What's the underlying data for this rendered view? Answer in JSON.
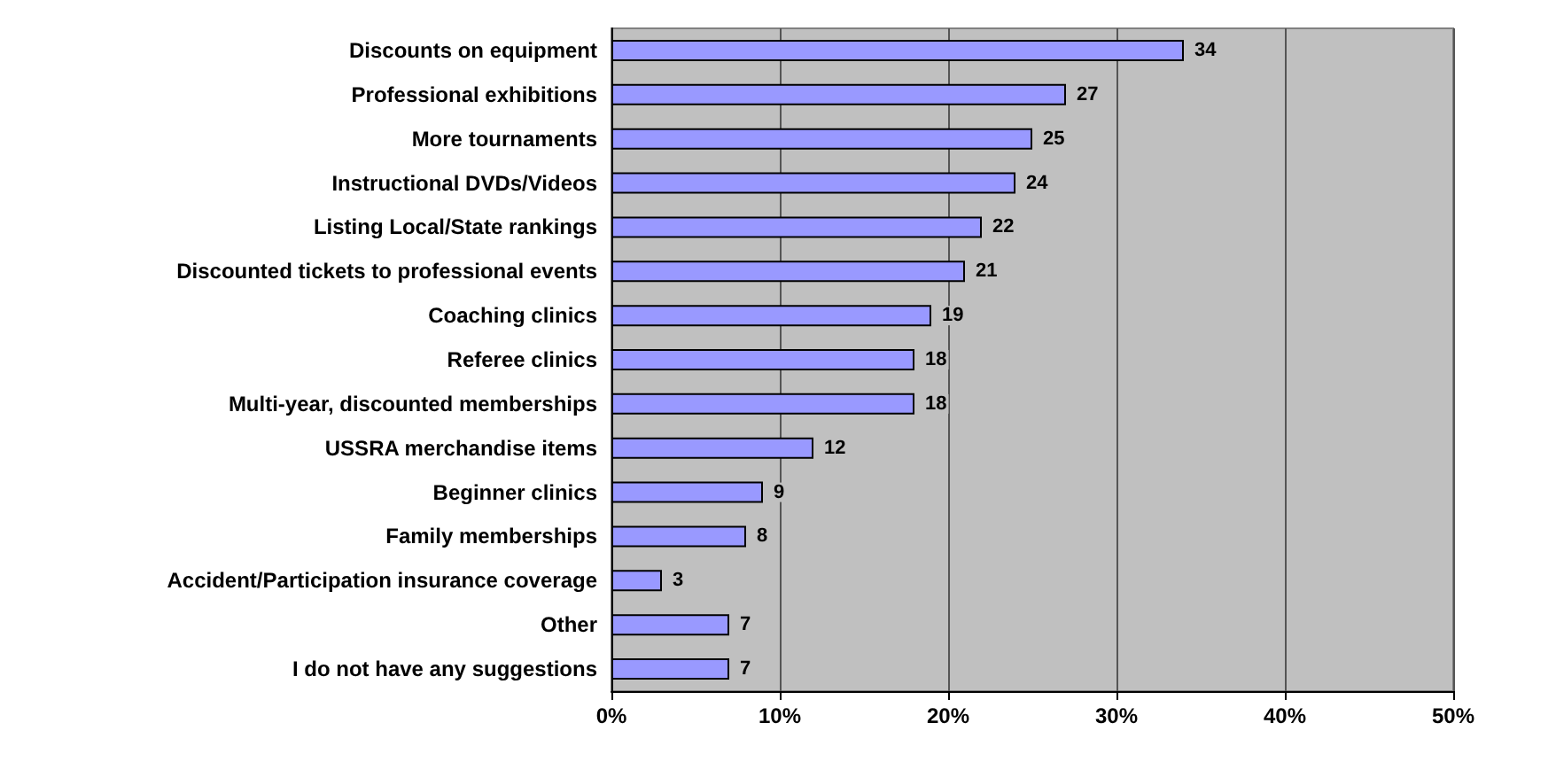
{
  "chart_data": {
    "type": "bar",
    "orientation": "horizontal",
    "categories": [
      "Discounts on equipment",
      "Professional exhibitions",
      "More tournaments",
      "Instructional DVDs/Videos",
      "Listing Local/State rankings",
      "Discounted tickets to professional events",
      "Coaching clinics",
      "Referee clinics",
      "Multi-year, discounted memberships",
      "USSRA merchandise items",
      "Beginner clinics",
      "Family memberships",
      "Accident/Participation insurance coverage",
      "Other",
      "I do not have any suggestions"
    ],
    "values": [
      34,
      27,
      25,
      24,
      22,
      21,
      19,
      18,
      18,
      12,
      9,
      8,
      3,
      7,
      7
    ],
    "color": "#9999ff",
    "data_labels": true,
    "grid": "x",
    "xlim": [
      0,
      50
    ],
    "xticks": [
      {
        "value": 0,
        "label": "0%"
      },
      {
        "value": 10,
        "label": "10%"
      },
      {
        "value": 20,
        "label": "20%"
      },
      {
        "value": 30,
        "label": "30%"
      },
      {
        "value": 40,
        "label": "40%"
      },
      {
        "value": 50,
        "label": "50%"
      }
    ]
  }
}
